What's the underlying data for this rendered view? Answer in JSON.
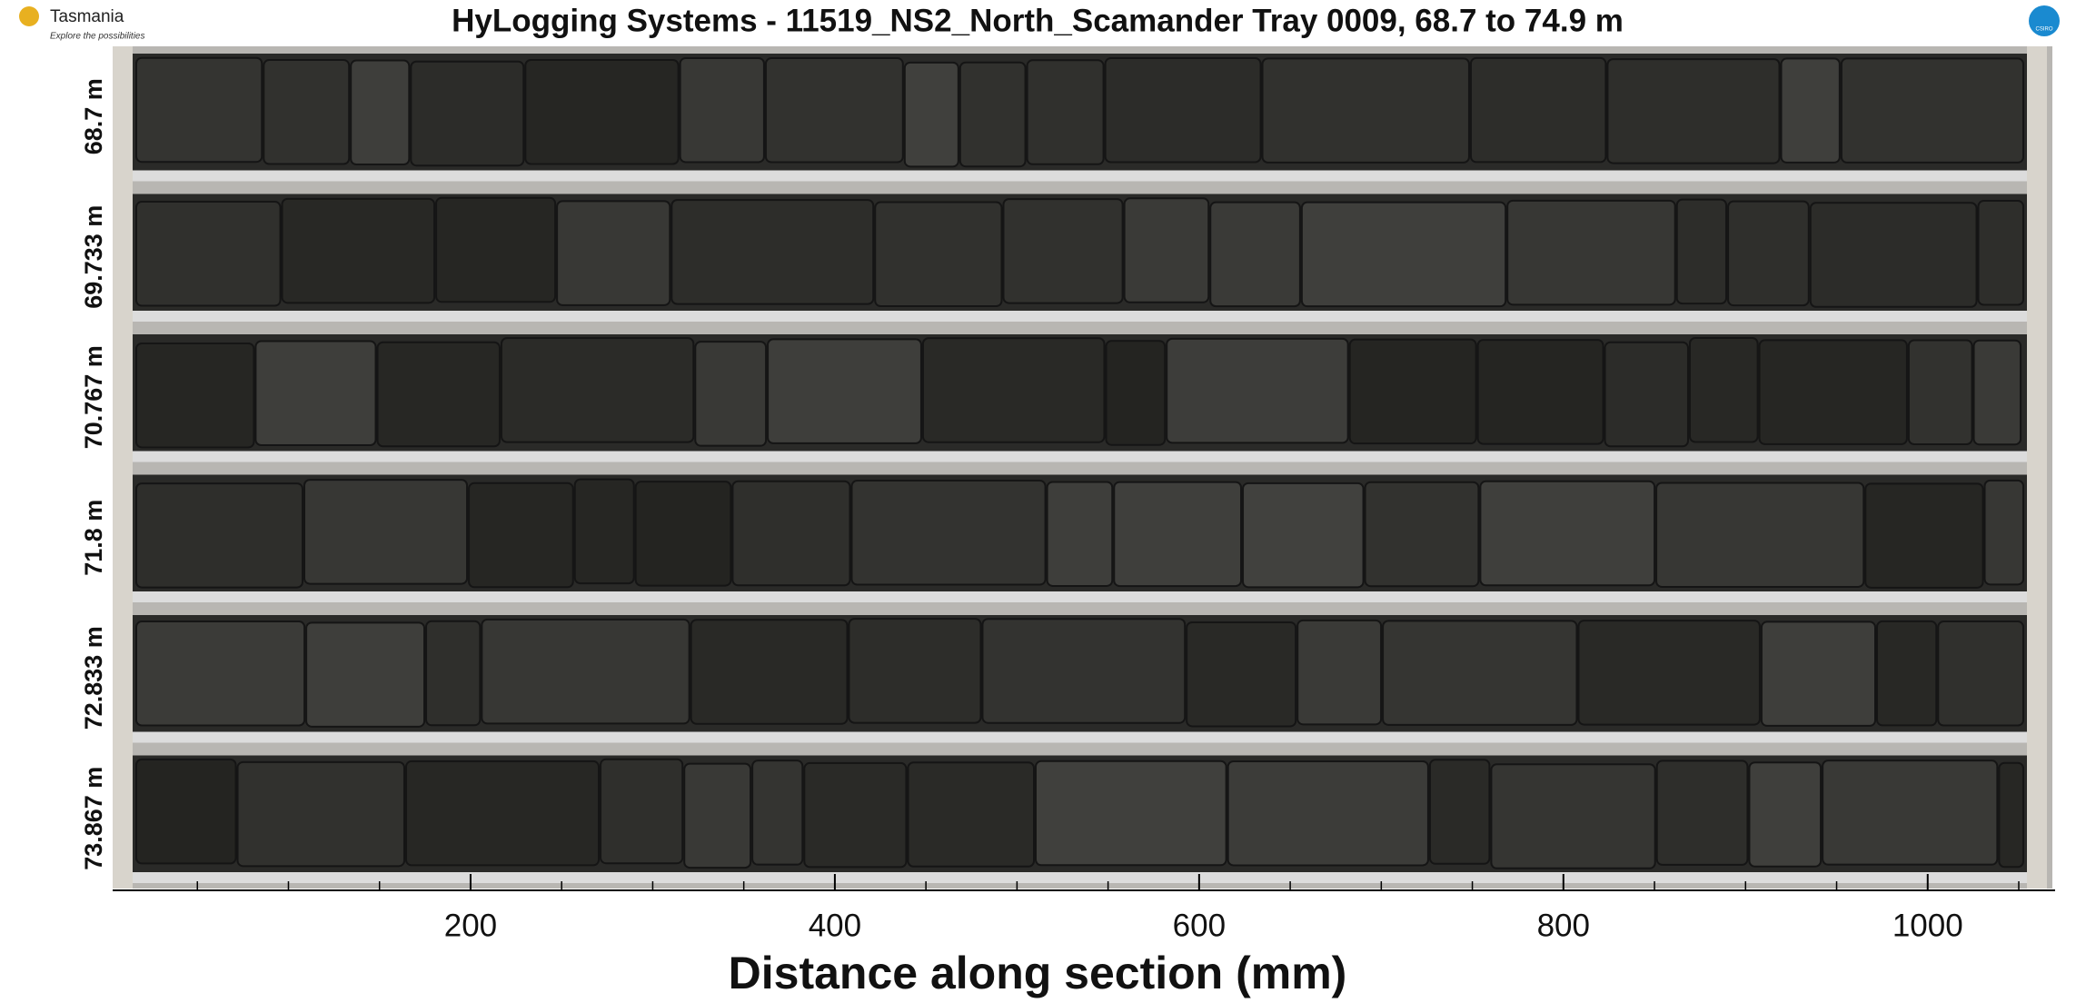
{
  "header": {
    "title": "HyLogging Systems  -  11519_NS2_North_Scamander  Tray 0009,  68.7 to 74.9 m",
    "logo_left": {
      "name": "Tasmania",
      "tagline": "Explore the possibilities"
    },
    "logo_right": "CSIRO"
  },
  "rows": [
    "68.7 m",
    "69.733 m",
    "70.767 m",
    "71.8 m",
    "72.833 m",
    "73.867 m"
  ],
  "x_axis": {
    "label": "Distance along section (mm)",
    "xlim": [
      0,
      1050
    ],
    "xticks": [
      200,
      400,
      600,
      800,
      1000
    ],
    "xminorticks": [
      50,
      100,
      150,
      250,
      300,
      350,
      450,
      500,
      550,
      650,
      700,
      750,
      850,
      900,
      950,
      1050
    ]
  }
}
